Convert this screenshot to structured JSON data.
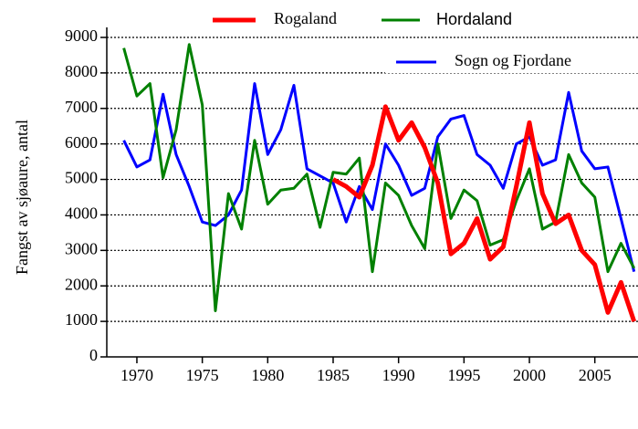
{
  "chart_data": {
    "type": "line",
    "y_label": "Fangst av sjøaure, antal",
    "x": [
      1969,
      1970,
      1971,
      1972,
      1973,
      1974,
      1975,
      1976,
      1977,
      1978,
      1979,
      1980,
      1981,
      1982,
      1983,
      1984,
      1985,
      1986,
      1987,
      1988,
      1989,
      1990,
      1991,
      1992,
      1993,
      1994,
      1995,
      1996,
      1997,
      1998,
      1999,
      2000,
      2001,
      2002,
      2003,
      2004,
      2005,
      2006,
      2007,
      2008
    ],
    "xlim": [
      1967.7,
      2008.3
    ],
    "xticks": [
      1970,
      1975,
      1980,
      1985,
      1990,
      1995,
      2000,
      2005
    ],
    "ylim": [
      0,
      9000
    ],
    "yticks": [
      0,
      1000,
      2000,
      3000,
      4000,
      5000,
      6000,
      7000,
      8000,
      9000
    ],
    "grid": true,
    "series": [
      {
        "name": "Sogn og Fjordane",
        "color": "#0000ff",
        "values": [
          6100,
          5350,
          5550,
          7400,
          5700,
          4800,
          3800,
          3700,
          4000,
          4700,
          7700,
          5700,
          6400,
          7650,
          5300,
          5100,
          4900,
          3800,
          4800,
          4150,
          6000,
          5400,
          4550,
          4750,
          6200,
          6700,
          6800,
          5700,
          5400,
          4750,
          6000,
          6200,
          5400,
          5550,
          7450,
          5800,
          5300,
          5350,
          3900,
          2400
        ]
      },
      {
        "name": "Hordaland",
        "color": "#008000",
        "values": [
          8700,
          7350,
          7700,
          5050,
          6400,
          8800,
          7100,
          1300,
          4600,
          3600,
          6100,
          4300,
          4700,
          4750,
          5150,
          3650,
          5200,
          5150,
          5600,
          2400,
          4900,
          4550,
          3700,
          3050,
          6000,
          3900,
          4700,
          4400,
          3150,
          3300,
          4400,
          5300,
          3600,
          3800,
          5700,
          4900,
          4500,
          2400,
          3200,
          2500
        ]
      },
      {
        "name": "Rogaland",
        "color": "#ff0000",
        "values": [
          null,
          null,
          null,
          null,
          null,
          null,
          null,
          null,
          null,
          null,
          null,
          null,
          null,
          null,
          null,
          null,
          5000,
          4800,
          4500,
          5400,
          7050,
          6100,
          6600,
          5900,
          4900,
          2900,
          3200,
          3900,
          2750,
          3100,
          4800,
          6600,
          4600,
          3750,
          4000,
          3000,
          2600,
          1250,
          2100,
          1000
        ]
      }
    ]
  }
}
